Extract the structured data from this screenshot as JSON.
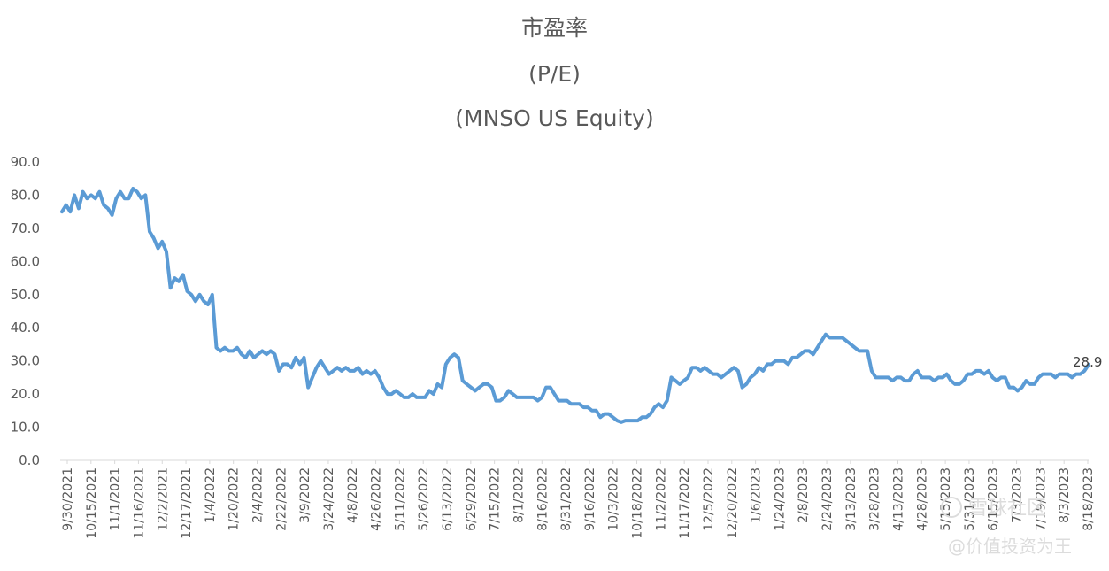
{
  "chart_data": {
    "type": "line",
    "title": "市盈率",
    "subtitle": "(P/E)",
    "subtitle2": "(MNSO US Equity)",
    "ylim": [
      0,
      90
    ],
    "yticks": [
      "0.0",
      "10.0",
      "20.0",
      "30.0",
      "40.0",
      "50.0",
      "60.0",
      "70.0",
      "80.0",
      "90.0"
    ],
    "grid": false,
    "legend": "none",
    "line_color": "#5b9bd5",
    "x_tick_labels": [
      "9/30/2021",
      "10/15/2021",
      "11/1/2021",
      "11/16/2021",
      "12/2/2021",
      "12/17/2021",
      "1/4/2022",
      "1/20/2022",
      "2/4/2022",
      "2/22/2022",
      "3/9/2022",
      "3/24/2022",
      "4/8/2022",
      "4/26/2022",
      "5/11/2022",
      "5/26/2022",
      "6/13/2022",
      "6/29/2022",
      "7/15/2022",
      "8/1/2022",
      "8/16/2022",
      "8/31/2022",
      "9/16/2022",
      "10/3/2022",
      "10/18/2022",
      "11/2/2022",
      "11/17/2022",
      "12/5/2022",
      "12/20/2022",
      "1/6/2023",
      "1/24/2023",
      "2/8/2023",
      "2/24/2023",
      "3/13/2023",
      "3/28/2023",
      "4/13/2023",
      "4/28/2023",
      "5/15/2023",
      "5/31/2023",
      "6/15/2023",
      "7/3/2023",
      "7/19/2023",
      "8/3/2023",
      "8/18/2023"
    ],
    "series": [
      {
        "values": [
          75,
          77,
          75,
          80,
          76,
          81,
          79,
          80,
          79,
          81,
          77,
          76,
          74,
          79,
          81,
          79,
          79,
          82,
          81,
          79,
          80,
          69,
          67,
          64,
          66,
          63,
          52,
          55,
          54,
          56,
          51,
          50,
          48,
          50,
          48,
          47,
          50,
          34,
          33,
          34,
          33,
          33,
          34,
          32,
          31,
          33,
          31,
          32,
          33,
          32,
          33,
          32,
          27,
          29,
          29,
          28,
          31,
          29,
          31,
          22,
          25,
          28,
          30,
          28,
          26,
          27,
          28,
          27,
          28,
          27,
          27,
          28,
          26,
          27,
          26,
          27,
          25,
          22,
          20,
          20,
          21,
          20,
          19,
          19,
          20,
          19,
          19,
          19,
          21,
          20,
          23,
          22,
          29,
          31,
          32,
          31,
          24,
          23,
          22,
          21,
          22,
          23,
          23,
          22,
          18,
          18,
          19,
          21,
          20,
          19,
          19,
          19,
          19,
          19,
          18,
          19,
          22,
          22,
          20,
          18,
          18,
          18,
          17,
          17,
          17,
          16,
          16,
          15,
          15,
          13,
          14,
          14,
          13,
          12,
          11.5,
          12,
          12,
          12,
          12,
          13,
          13,
          14,
          16,
          17,
          16,
          18,
          25,
          24,
          23,
          24,
          25,
          28,
          28,
          27,
          28,
          27,
          26,
          26,
          25,
          26,
          27,
          28,
          27,
          22,
          23,
          25,
          26,
          28,
          27,
          29,
          29,
          30,
          30,
          30,
          29,
          31,
          31,
          32,
          33,
          33,
          32,
          34,
          36,
          38,
          37,
          37,
          37,
          37,
          36,
          35,
          34,
          33,
          33,
          33,
          27,
          25,
          25,
          25,
          25,
          24,
          25,
          25,
          24,
          24,
          26,
          27,
          25,
          25,
          25,
          24,
          25,
          25,
          26,
          24,
          23,
          23,
          24,
          26,
          26,
          27,
          27,
          26,
          27,
          25,
          24,
          25,
          25,
          22,
          22,
          21,
          22,
          24,
          23,
          23,
          25,
          26,
          26,
          26,
          25,
          26,
          26,
          26,
          25,
          26,
          26,
          27,
          28.9
        ]
      }
    ],
    "last_value_label": "28.9"
  },
  "watermark": {
    "line1": "雪球社区",
    "line2": "@价值投资为王"
  }
}
